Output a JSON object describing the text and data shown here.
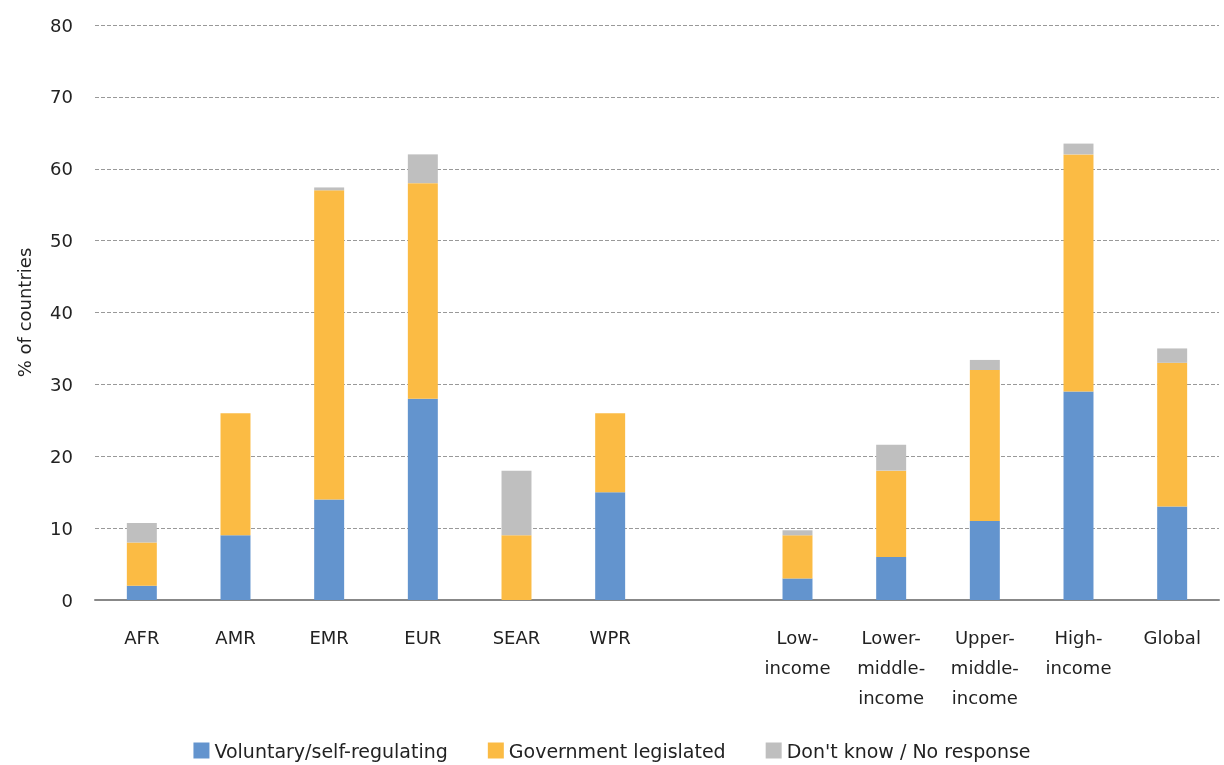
{
  "chart_data": {
    "type": "bar",
    "stacked": true,
    "ylabel": "% of countries",
    "categories": [
      "AFR",
      "AMR",
      "EMR",
      "EUR",
      "SEAR",
      "WPR",
      null,
      "Low-income",
      "Lower-middle-income",
      "Upper-middle-income",
      "High-income",
      "Global"
    ],
    "series": [
      {
        "name": "Voluntary/self-regulating",
        "color": "#6394ce",
        "values": [
          2,
          9,
          14,
          28,
          0,
          15,
          null,
          3,
          6,
          11,
          29,
          13
        ]
      },
      {
        "name": "Government legislated",
        "color": "#fbbb44",
        "values": [
          6,
          17,
          43,
          30,
          9,
          11,
          null,
          6,
          12,
          21,
          33,
          20
        ]
      },
      {
        "name": "Don't know / No response",
        "color": "#bfbfbf",
        "values": [
          2.7,
          0,
          0.4,
          4,
          9,
          0,
          null,
          0.7,
          3.6,
          1.4,
          1.5,
          2
        ]
      }
    ],
    "ylim": [
      0,
      80
    ],
    "yticks": [
      0,
      10,
      20,
      30,
      40,
      50,
      60,
      70,
      80
    ],
    "grid": "y",
    "legend": "bottom"
  }
}
